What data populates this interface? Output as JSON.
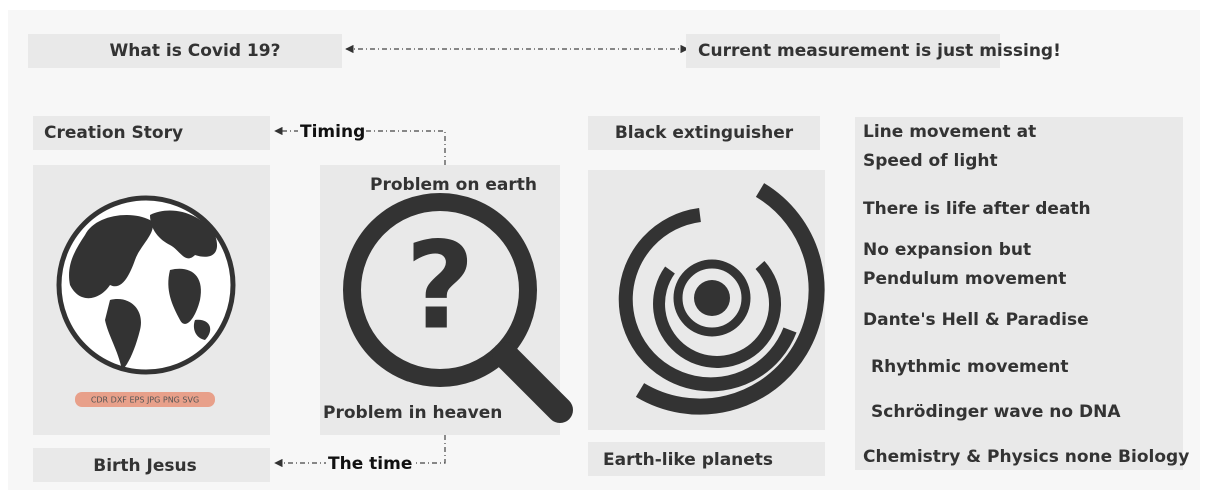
{
  "top": {
    "question": "What is Covid 19?",
    "answer": "Current measurement is just missing!"
  },
  "left": {
    "top_label": "Creation Story",
    "bottom_label": "Birth Jesus",
    "badge": "CDR DXF EPS JPG PNG SVG"
  },
  "middle": {
    "top_arrow": "Timing",
    "bottom_arrow": "The time",
    "top_text": "Problem on earth",
    "bottom_text": "Problem in heaven"
  },
  "center": {
    "top_label": "Black extinguisher",
    "bottom_label": "Earth-like planets"
  },
  "right": {
    "items": [
      "Line movement at",
      "Speed of light",
      "There is life after death",
      "No expansion but",
      "Pendulum movement",
      "Dante's Hell & Paradise",
      "Rhythmic movement",
      "Schrödinger wave no DNA",
      "Chemistry & Physics none Biology"
    ]
  }
}
